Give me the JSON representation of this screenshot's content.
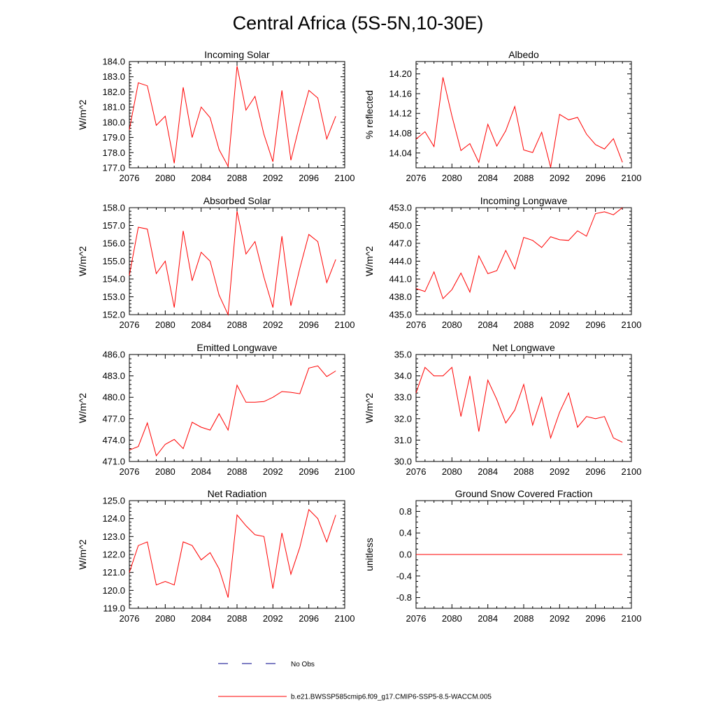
{
  "figure": {
    "title": "Central Africa (5S-5N,10-30E)",
    "line_color": "#ff0000",
    "obs_color": "#00008b"
  },
  "legend": {
    "obs_label": "No Obs",
    "model_label": "b.e21.BWSSP585cmip6.f09_g17.CMIP6-SSP5-8.5-WACCM.005"
  },
  "chart_data": [
    {
      "type": "line",
      "title": "Incoming Solar",
      "ylabel": "W/m^2",
      "xlim": [
        2076,
        2100
      ],
      "ylim": [
        177.0,
        184.0
      ],
      "xticks": [
        2076,
        2080,
        2084,
        2088,
        2092,
        2096,
        2100
      ],
      "xtick_labels": [
        "2076",
        "2080",
        "2084",
        "2088",
        "2092",
        "2096",
        "2100"
      ],
      "yticks": [
        177.0,
        178.0,
        179.0,
        180.0,
        181.0,
        182.0,
        183.0,
        184.0
      ],
      "ytick_labels": [
        "177.0",
        "178.0",
        "179.0",
        "180.0",
        "181.0",
        "182.0",
        "183.0",
        "184.0"
      ],
      "yminor": 0.2,
      "x": [
        2076,
        2077,
        2078,
        2079,
        2080,
        2081,
        2082,
        2083,
        2084,
        2085,
        2086,
        2087,
        2088,
        2089,
        2090,
        2091,
        2092,
        2093,
        2094,
        2095,
        2096,
        2097,
        2098,
        2099
      ],
      "values": [
        179.5,
        182.6,
        182.4,
        179.8,
        180.4,
        177.3,
        182.3,
        179.0,
        181.0,
        180.3,
        178.2,
        177.1,
        183.7,
        180.8,
        181.7,
        179.2,
        177.4,
        182.1,
        177.5,
        179.9,
        182.1,
        181.6,
        178.9,
        180.4
      ]
    },
    {
      "type": "line",
      "title": "Albedo",
      "ylabel": "% reflected",
      "xlim": [
        2076,
        2100
      ],
      "ylim": [
        14.01,
        14.225
      ],
      "xticks": [
        2076,
        2080,
        2084,
        2088,
        2092,
        2096,
        2100
      ],
      "xtick_labels": [
        "2076",
        "2080",
        "2084",
        "2088",
        "2092",
        "2096",
        "2100"
      ],
      "yticks": [
        14.04,
        14.08,
        14.12,
        14.16,
        14.2
      ],
      "ytick_labels": [
        "14.04",
        "14.08",
        "14.12",
        "14.16",
        "14.20"
      ],
      "yminor": 0.01,
      "x": [
        2076,
        2077,
        2078,
        2079,
        2080,
        2081,
        2082,
        2083,
        2084,
        2085,
        2086,
        2087,
        2088,
        2089,
        2090,
        2091,
        2092,
        2093,
        2094,
        2095,
        2096,
        2097,
        2098,
        2099
      ],
      "values": [
        14.068,
        14.083,
        14.053,
        14.193,
        14.115,
        14.045,
        14.059,
        14.021,
        14.098,
        14.054,
        14.085,
        14.134,
        14.046,
        14.041,
        14.082,
        14.011,
        14.118,
        14.107,
        14.112,
        14.078,
        14.057,
        14.048,
        14.069,
        14.021
      ]
    },
    {
      "type": "line",
      "title": "Absorbed Solar",
      "ylabel": "W/m^2",
      "xlim": [
        2076,
        2100
      ],
      "ylim": [
        152.0,
        158.0
      ],
      "xticks": [
        2076,
        2080,
        2084,
        2088,
        2092,
        2096,
        2100
      ],
      "xtick_labels": [
        "2076",
        "2080",
        "2084",
        "2088",
        "2092",
        "2096",
        "2100"
      ],
      "yticks": [
        152.0,
        153.0,
        154.0,
        155.0,
        156.0,
        157.0,
        158.0
      ],
      "ytick_labels": [
        "152.0",
        "153.0",
        "154.0",
        "155.0",
        "156.0",
        "157.0",
        "158.0"
      ],
      "yminor": 0.2,
      "x": [
        2076,
        2077,
        2078,
        2079,
        2080,
        2081,
        2082,
        2083,
        2084,
        2085,
        2086,
        2087,
        2088,
        2089,
        2090,
        2091,
        2092,
        2093,
        2094,
        2095,
        2096,
        2097,
        2098,
        2099
      ],
      "values": [
        154.2,
        156.9,
        156.8,
        154.3,
        155.0,
        152.4,
        156.7,
        153.9,
        155.5,
        155.0,
        153.1,
        152.0,
        157.8,
        155.4,
        156.1,
        154.1,
        152.4,
        156.4,
        152.5,
        154.6,
        156.5,
        156.1,
        153.8,
        155.1
      ]
    },
    {
      "type": "line",
      "title": "Incoming Longwave",
      "ylabel": "W/m^2",
      "xlim": [
        2076,
        2100
      ],
      "ylim": [
        435.0,
        453.0
      ],
      "xticks": [
        2076,
        2080,
        2084,
        2088,
        2092,
        2096,
        2100
      ],
      "xtick_labels": [
        "2076",
        "2080",
        "2084",
        "2088",
        "2092",
        "2096",
        "2100"
      ],
      "yticks": [
        435.0,
        438.0,
        441.0,
        444.0,
        447.0,
        450.0,
        453.0
      ],
      "ytick_labels": [
        "435.0",
        "438.0",
        "441.0",
        "444.0",
        "447.0",
        "450.0",
        "453.0"
      ],
      "yminor": 0.6,
      "x": [
        2076,
        2077,
        2078,
        2079,
        2080,
        2081,
        2082,
        2083,
        2084,
        2085,
        2086,
        2087,
        2088,
        2089,
        2090,
        2091,
        2092,
        2093,
        2094,
        2095,
        2096,
        2097,
        2098,
        2099
      ],
      "values": [
        439.4,
        438.9,
        442.2,
        437.7,
        439.2,
        442.0,
        438.8,
        444.9,
        441.9,
        442.4,
        445.8,
        442.7,
        448.0,
        447.5,
        446.3,
        448.1,
        447.6,
        447.5,
        449.1,
        448.2,
        452.0,
        452.3,
        451.8,
        453.0
      ]
    },
    {
      "type": "line",
      "title": "Emitted Longwave",
      "ylabel": "W/m^2",
      "xlim": [
        2076,
        2100
      ],
      "ylim": [
        471.0,
        486.0
      ],
      "xticks": [
        2076,
        2080,
        2084,
        2088,
        2092,
        2096,
        2100
      ],
      "xtick_labels": [
        "2076",
        "2080",
        "2084",
        "2088",
        "2092",
        "2096",
        "2100"
      ],
      "yticks": [
        471.0,
        474.0,
        477.0,
        480.0,
        483.0,
        486.0
      ],
      "ytick_labels": [
        "471.0",
        "474.0",
        "477.0",
        "480.0",
        "483.0",
        "486.0"
      ],
      "yminor": 0.6,
      "x": [
        2076,
        2077,
        2078,
        2079,
        2080,
        2081,
        2082,
        2083,
        2084,
        2085,
        2086,
        2087,
        2088,
        2089,
        2090,
        2091,
        2092,
        2093,
        2094,
        2095,
        2096,
        2097,
        2098,
        2099
      ],
      "values": [
        472.6,
        473.1,
        476.4,
        471.8,
        473.4,
        474.1,
        472.8,
        476.5,
        475.8,
        475.4,
        477.7,
        475.4,
        481.7,
        479.3,
        479.3,
        479.4,
        480.0,
        480.8,
        480.7,
        480.5,
        484.1,
        484.4,
        482.9,
        483.7
      ]
    },
    {
      "type": "line",
      "title": "Net Longwave",
      "ylabel": "W/m^2",
      "xlim": [
        2076,
        2100
      ],
      "ylim": [
        30.0,
        35.0
      ],
      "xticks": [
        2076,
        2080,
        2084,
        2088,
        2092,
        2096,
        2100
      ],
      "xtick_labels": [
        "2076",
        "2080",
        "2084",
        "2088",
        "2092",
        "2096",
        "2100"
      ],
      "yticks": [
        30.0,
        31.0,
        32.0,
        33.0,
        34.0,
        35.0
      ],
      "ytick_labels": [
        "30.0",
        "31.0",
        "32.0",
        "33.0",
        "34.0",
        "35.0"
      ],
      "yminor": 0.2,
      "x": [
        2076,
        2077,
        2078,
        2079,
        2080,
        2081,
        2082,
        2083,
        2084,
        2085,
        2086,
        2087,
        2088,
        2089,
        2090,
        2091,
        2092,
        2093,
        2094,
        2095,
        2096,
        2097,
        2098,
        2099
      ],
      "values": [
        33.2,
        34.4,
        34.0,
        34.0,
        34.4,
        32.1,
        34.0,
        31.4,
        33.8,
        32.9,
        31.8,
        32.4,
        33.6,
        31.7,
        33.0,
        31.1,
        32.3,
        33.2,
        31.6,
        32.1,
        32.0,
        32.1,
        31.1,
        30.9
      ]
    },
    {
      "type": "line",
      "title": "Net Radiation",
      "ylabel": "W/m^2",
      "xlim": [
        2076,
        2100
      ],
      "ylim": [
        119.0,
        125.0
      ],
      "xticks": [
        2076,
        2080,
        2084,
        2088,
        2092,
        2096,
        2100
      ],
      "xtick_labels": [
        "2076",
        "2080",
        "2084",
        "2088",
        "2092",
        "2096",
        "2100"
      ],
      "yticks": [
        119.0,
        120.0,
        121.0,
        122.0,
        123.0,
        124.0,
        125.0
      ],
      "ytick_labels": [
        "119.0",
        "120.0",
        "121.0",
        "122.0",
        "123.0",
        "124.0",
        "125.0"
      ],
      "yminor": 0.2,
      "x": [
        2076,
        2077,
        2078,
        2079,
        2080,
        2081,
        2082,
        2083,
        2084,
        2085,
        2086,
        2087,
        2088,
        2089,
        2090,
        2091,
        2092,
        2093,
        2094,
        2095,
        2096,
        2097,
        2098,
        2099
      ],
      "values": [
        121.0,
        122.5,
        122.7,
        120.3,
        120.5,
        120.3,
        122.7,
        122.5,
        121.7,
        122.1,
        121.2,
        119.6,
        124.2,
        123.6,
        123.1,
        123.0,
        120.1,
        123.2,
        120.9,
        122.4,
        124.5,
        124.0,
        122.7,
        124.2
      ]
    },
    {
      "type": "line",
      "title": "Ground Snow Covered Fraction",
      "ylabel": "unitless",
      "xlim": [
        2076,
        2100
      ],
      "ylim": [
        -1.0,
        1.0
      ],
      "xticks": [
        2076,
        2080,
        2084,
        2088,
        2092,
        2096,
        2100
      ],
      "xtick_labels": [
        "2076",
        "2080",
        "2084",
        "2088",
        "2092",
        "2096",
        "2100"
      ],
      "yticks": [
        -0.8,
        -0.4,
        0.0,
        0.4,
        0.8
      ],
      "ytick_labels": [
        "-0.8",
        "-0.4",
        "0.0",
        "0.4",
        "0.8"
      ],
      "yminor": 0.1,
      "x": [
        2076,
        2077,
        2078,
        2079,
        2080,
        2081,
        2082,
        2083,
        2084,
        2085,
        2086,
        2087,
        2088,
        2089,
        2090,
        2091,
        2092,
        2093,
        2094,
        2095,
        2096,
        2097,
        2098,
        2099
      ],
      "values": [
        0,
        0,
        0,
        0,
        0,
        0,
        0,
        0,
        0,
        0,
        0,
        0,
        0,
        0,
        0,
        0,
        0,
        0,
        0,
        0,
        0,
        0,
        0,
        0
      ]
    }
  ]
}
